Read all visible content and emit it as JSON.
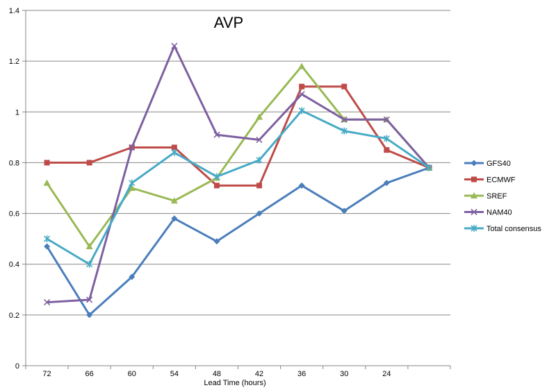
{
  "chart_data": {
    "type": "line",
    "title": "AVP",
    "xlabel": "Lead Time (hours)",
    "ylabel": "",
    "categories": [
      "72",
      "66",
      "60",
      "54",
      "48",
      "42",
      "36",
      "30",
      "24",
      ""
    ],
    "ylim": [
      0,
      1.4
    ],
    "yticks": [
      0,
      0.2,
      0.4,
      0.6,
      0.8,
      1,
      1.2,
      1.4
    ],
    "ytick_labels": [
      "0",
      "0.2",
      "0.4",
      "0.6",
      "0.8",
      "1",
      "1.2",
      "1.4"
    ],
    "grid": "horizontal",
    "legend_position": "right",
    "series": [
      {
        "name": "GFS40",
        "color": "#4a7ebb",
        "marker": "diamond",
        "values": [
          0.47,
          0.2,
          0.35,
          0.58,
          0.49,
          0.6,
          0.71,
          0.61,
          0.72,
          0.78
        ]
      },
      {
        "name": "ECMWF",
        "color": "#be4b48",
        "marker": "square",
        "values": [
          0.8,
          0.8,
          0.86,
          0.86,
          0.71,
          0.71,
          1.1,
          1.1,
          0.85,
          0.78
        ]
      },
      {
        "name": "SREF",
        "color": "#98b954",
        "marker": "triangle",
        "values": [
          0.72,
          0.47,
          0.7,
          0.65,
          0.74,
          0.98,
          1.18,
          0.97,
          0.97,
          0.78
        ]
      },
      {
        "name": "NAM40",
        "color": "#7d60a0",
        "marker": "x",
        "values": [
          0.25,
          0.26,
          0.86,
          1.26,
          0.91,
          0.89,
          1.07,
          0.97,
          0.97,
          0.78
        ]
      },
      {
        "name": "Total consensus",
        "color": "#46aac5",
        "marker": "star",
        "values": [
          0.5,
          0.4,
          0.72,
          0.84,
          0.745,
          0.81,
          1.005,
          0.925,
          0.895,
          0.78
        ]
      }
    ]
  }
}
